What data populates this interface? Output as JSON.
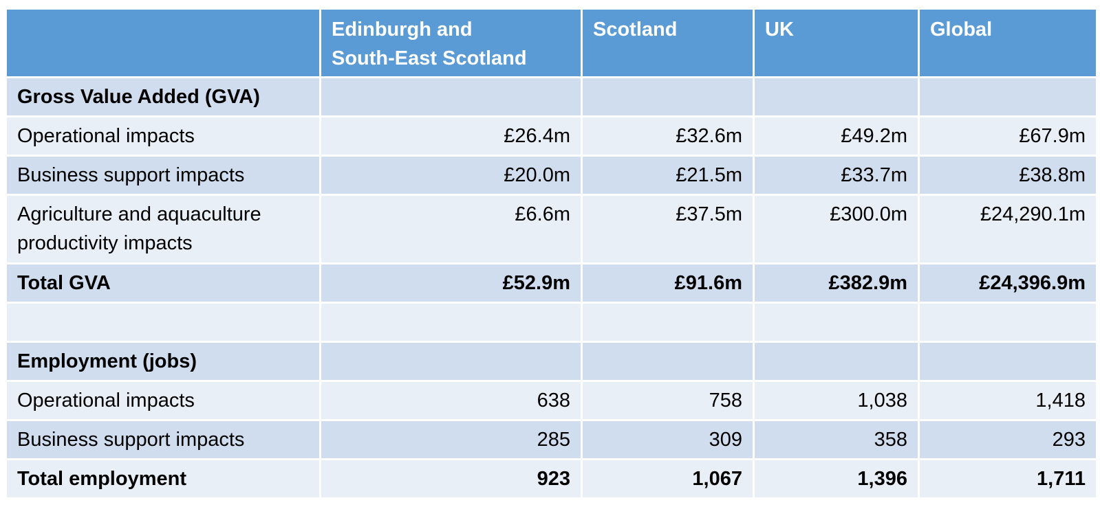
{
  "table": {
    "headers": [
      "",
      "Edinburgh and\nSouth-East Scotland",
      "Scotland",
      "UK",
      "Global"
    ],
    "rows": [
      {
        "cells": [
          "Gross Value Added (GVA)",
          "",
          "",
          "",
          ""
        ]
      },
      {
        "cells": [
          "Operational impacts",
          "£26.4m",
          "£32.6m",
          "£49.2m",
          "£67.9m"
        ]
      },
      {
        "cells": [
          "Business support impacts",
          "£20.0m",
          "£21.5m",
          "£33.7m",
          "£38.8m"
        ]
      },
      {
        "cells": [
          "Agriculture and aquaculture productivity impacts",
          "£6.6m",
          "£37.5m",
          "£300.0m",
          "£24,290.1m"
        ]
      },
      {
        "cells": [
          "Total GVA",
          "£52.9m",
          "£91.6m",
          "£382.9m",
          "£24,396.9m"
        ]
      },
      {
        "cells": [
          "",
          "",
          "",
          "",
          ""
        ]
      },
      {
        "cells": [
          "Employment (jobs)",
          "",
          "",
          "",
          ""
        ]
      },
      {
        "cells": [
          "Operational impacts",
          "638",
          "758",
          "1,038",
          "1,418"
        ]
      },
      {
        "cells": [
          "Business support impacts",
          "285",
          "309",
          "358",
          "293"
        ]
      },
      {
        "cells": [
          "Total employment",
          "923",
          "1,067",
          "1,396",
          "1,711"
        ]
      }
    ]
  }
}
